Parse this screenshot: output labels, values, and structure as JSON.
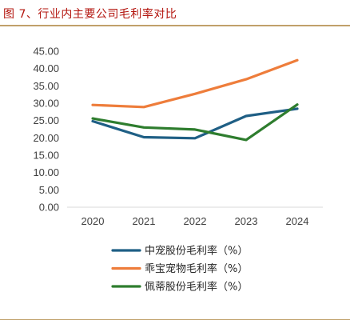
{
  "figure": {
    "title": "图 7、行业内主要公司毛利率对比"
  },
  "chart_data": {
    "type": "line",
    "x": [
      "2020",
      "2021",
      "2022",
      "2023",
      "2024"
    ],
    "ylim": [
      0,
      45
    ],
    "yticks": [
      "0.00",
      "5.00",
      "10.00",
      "15.00",
      "20.00",
      "25.00",
      "30.00",
      "35.00",
      "40.00",
      "45.00"
    ],
    "grid": false,
    "legend_position": "bottom",
    "series": [
      {
        "name": "中宠股份毛利率（%）",
        "color": "#1f5f85",
        "values": [
          24.8,
          20.2,
          19.9,
          26.3,
          28.4
        ]
      },
      {
        "name": "乖宝宠物毛利率（%）",
        "color": "#ee7d3b",
        "values": [
          29.5,
          28.9,
          32.7,
          36.9,
          42.4
        ]
      },
      {
        "name": "佩蒂股份毛利率（%）",
        "color": "#2e7d2e",
        "values": [
          25.6,
          23.0,
          22.4,
          19.4,
          29.6
        ]
      }
    ]
  }
}
